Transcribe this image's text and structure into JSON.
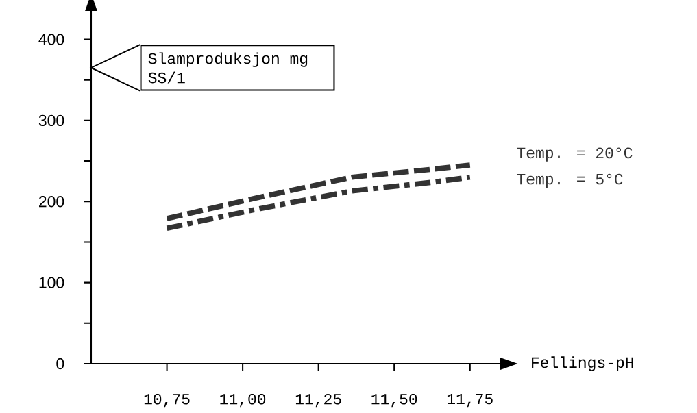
{
  "chart_data": {
    "type": "line",
    "xlabel": "Fellings-pH",
    "ylabel": "Slamproduksjon mg SS/1",
    "series": [
      {
        "name": "Temp. = 20°C",
        "color": "#333333",
        "line_style": "dashed",
        "x": [
          10.75,
          11.04,
          11.36,
          11.63,
          11.75
        ],
        "values": [
          179,
          204,
          230,
          240,
          245
        ]
      },
      {
        "name": "Temp. =  5°C",
        "color": "#333333",
        "line_style": "dashdotted",
        "x": [
          10.75,
          11.04,
          11.36,
          11.63,
          11.75
        ],
        "values": [
          167,
          190,
          213,
          224,
          230
        ]
      }
    ],
    "xlim": [
      10.5,
      11.85
    ],
    "ylim": [
      0,
      435
    ],
    "xticks": [
      {
        "value": 10.75,
        "label": "10,75"
      },
      {
        "value": 11.0,
        "label": "11,00"
      },
      {
        "value": 11.25,
        "label": "11,25"
      },
      {
        "value": 11.5,
        "label": "11,50"
      },
      {
        "value": 11.75,
        "label": "11,75"
      }
    ],
    "yticks": [
      0,
      {
        "value": 50,
        "label": null
      },
      100,
      {
        "value": 150,
        "label": null
      },
      200,
      {
        "value": 250,
        "label": null
      },
      300,
      {
        "value": 350,
        "label": null
      },
      400
    ],
    "grid": false,
    "marker": "none"
  }
}
